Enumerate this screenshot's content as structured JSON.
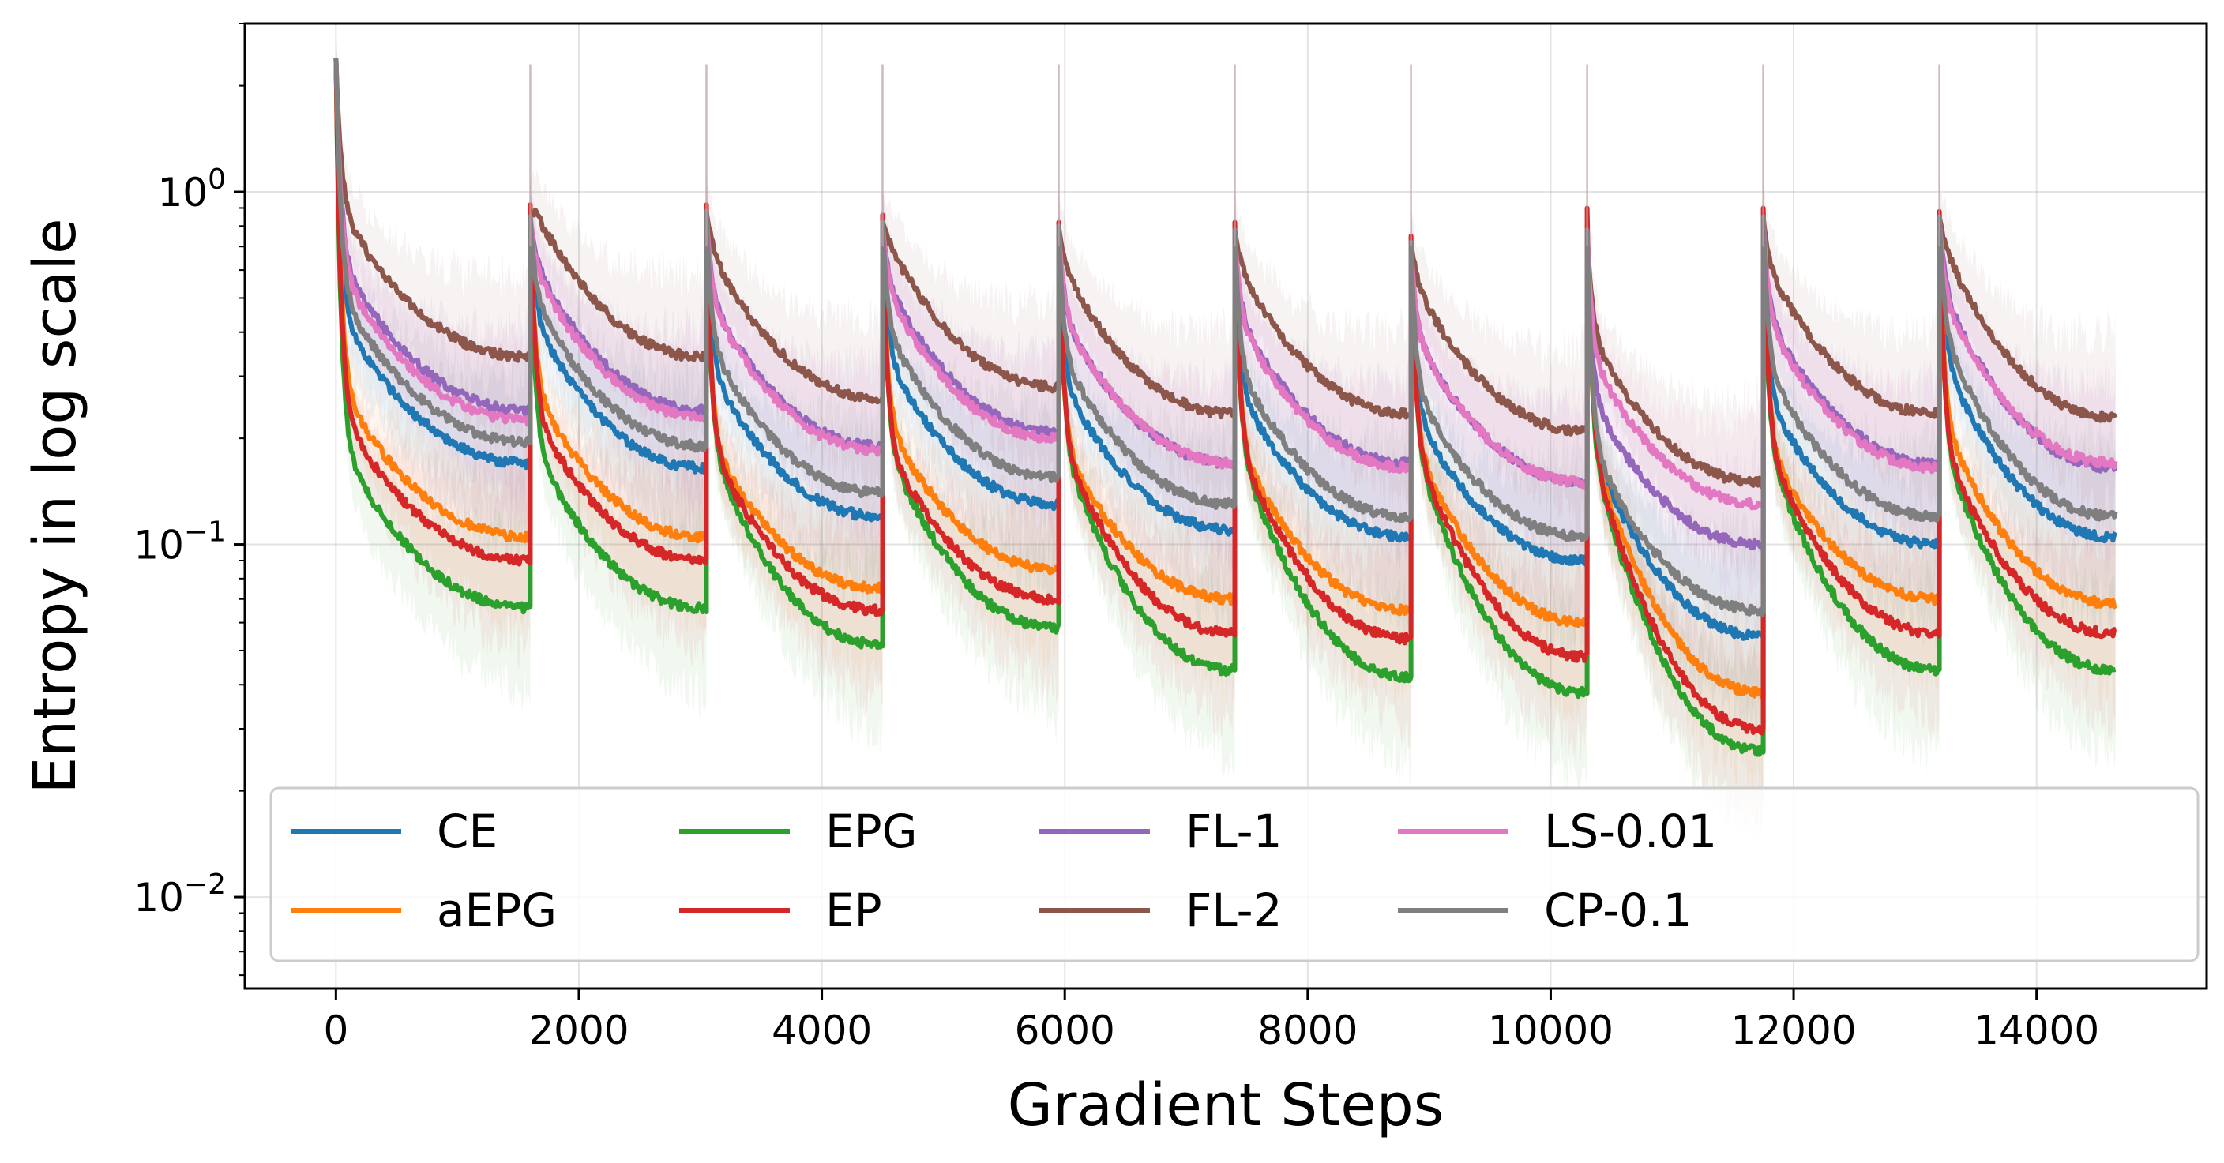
{
  "chart_data": {
    "type": "line",
    "xlabel": "Gradient Steps",
    "ylabel": "Entropy in log scale",
    "yscale": "log",
    "xlim": [
      -750,
      15400
    ],
    "ylim": [
      0.0055,
      3.0
    ],
    "xticks": [
      0,
      2000,
      4000,
      6000,
      8000,
      10000,
      12000,
      14000
    ],
    "yticks": [
      {
        "base": "10",
        "exp": "0",
        "value": 1
      },
      {
        "base": "10",
        "exp": "−1",
        "value": 0.1
      },
      {
        "base": "10",
        "exp": "−2",
        "value": 0.01
      }
    ],
    "grid": true,
    "legend_position": "lower-center, 6 columns",
    "initial_value": 2.4,
    "cycle_starts": [
      0,
      1600,
      3050,
      4500,
      5950,
      7400,
      8850,
      10300,
      11750,
      13200
    ],
    "cycle_end": 14650,
    "spike_peak": 2.3,
    "series": [
      {
        "name": "CE",
        "color": "#1f77b4",
        "peaks": [
          2.4,
          0.85,
          0.88,
          0.82,
          0.8,
          0.78,
          0.72,
          0.78,
          0.85,
          0.85
        ],
        "ends": [
          0.17,
          0.165,
          0.12,
          0.13,
          0.11,
          0.105,
          0.09,
          0.055,
          0.1,
          0.13,
          0.105
        ]
      },
      {
        "name": "aEPG",
        "color": "#ff7f0e",
        "peaks": [
          2.4,
          0.85,
          0.88,
          0.82,
          0.8,
          0.78,
          0.72,
          0.78,
          0.85,
          0.85
        ],
        "ends": [
          0.105,
          0.105,
          0.075,
          0.085,
          0.07,
          0.065,
          0.06,
          0.038,
          0.07,
          0.085,
          0.068
        ]
      },
      {
        "name": "EPG",
        "color": "#2ca02c",
        "peaks": [
          2.4,
          0.85,
          0.88,
          0.82,
          0.8,
          0.78,
          0.72,
          0.78,
          0.85,
          0.85
        ],
        "ends": [
          0.066,
          0.066,
          0.052,
          0.058,
          0.044,
          0.042,
          0.038,
          0.026,
          0.044,
          0.052,
          0.044
        ]
      },
      {
        "name": "EP",
        "color": "#d62728",
        "peaks": [
          2.4,
          0.92,
          0.92,
          0.86,
          0.82,
          0.82,
          0.75,
          0.9,
          0.9,
          0.88
        ],
        "ends": [
          0.09,
          0.09,
          0.065,
          0.07,
          0.056,
          0.054,
          0.048,
          0.03,
          0.056,
          0.064,
          0.056
        ]
      },
      {
        "name": "FL-1",
        "color": "#9467bd",
        "peaks": [
          2.4,
          0.85,
          0.88,
          0.82,
          0.8,
          0.78,
          0.72,
          0.78,
          0.85,
          0.85
        ],
        "ends": [
          0.24,
          0.24,
          0.19,
          0.21,
          0.17,
          0.17,
          0.15,
          0.1,
          0.17,
          0.2,
          0.165
        ]
      },
      {
        "name": "FL-2",
        "color": "#8c564b",
        "peaks": [
          2.4,
          0.85,
          0.88,
          0.82,
          0.8,
          0.78,
          0.72,
          0.78,
          0.85,
          0.85
        ],
        "ends": [
          0.34,
          0.34,
          0.26,
          0.28,
          0.235,
          0.235,
          0.21,
          0.15,
          0.235,
          0.27,
          0.23
        ]
      },
      {
        "name": "LS-0.01",
        "color": "#e377c2",
        "peaks": [
          2.4,
          0.85,
          0.88,
          0.82,
          0.8,
          0.78,
          0.72,
          0.78,
          0.85,
          0.85
        ],
        "ends": [
          0.225,
          0.23,
          0.185,
          0.2,
          0.17,
          0.165,
          0.15,
          0.13,
          0.165,
          0.19,
          0.17
        ]
      },
      {
        "name": "CP-0.1",
        "color": "#7f7f7f",
        "peaks": [
          2.4,
          0.85,
          0.88,
          0.82,
          0.8,
          0.78,
          0.72,
          0.78,
          0.85,
          0.85
        ],
        "ends": [
          0.195,
          0.19,
          0.14,
          0.155,
          0.13,
          0.12,
          0.105,
          0.065,
          0.12,
          0.15,
          0.12
        ]
      }
    ]
  }
}
